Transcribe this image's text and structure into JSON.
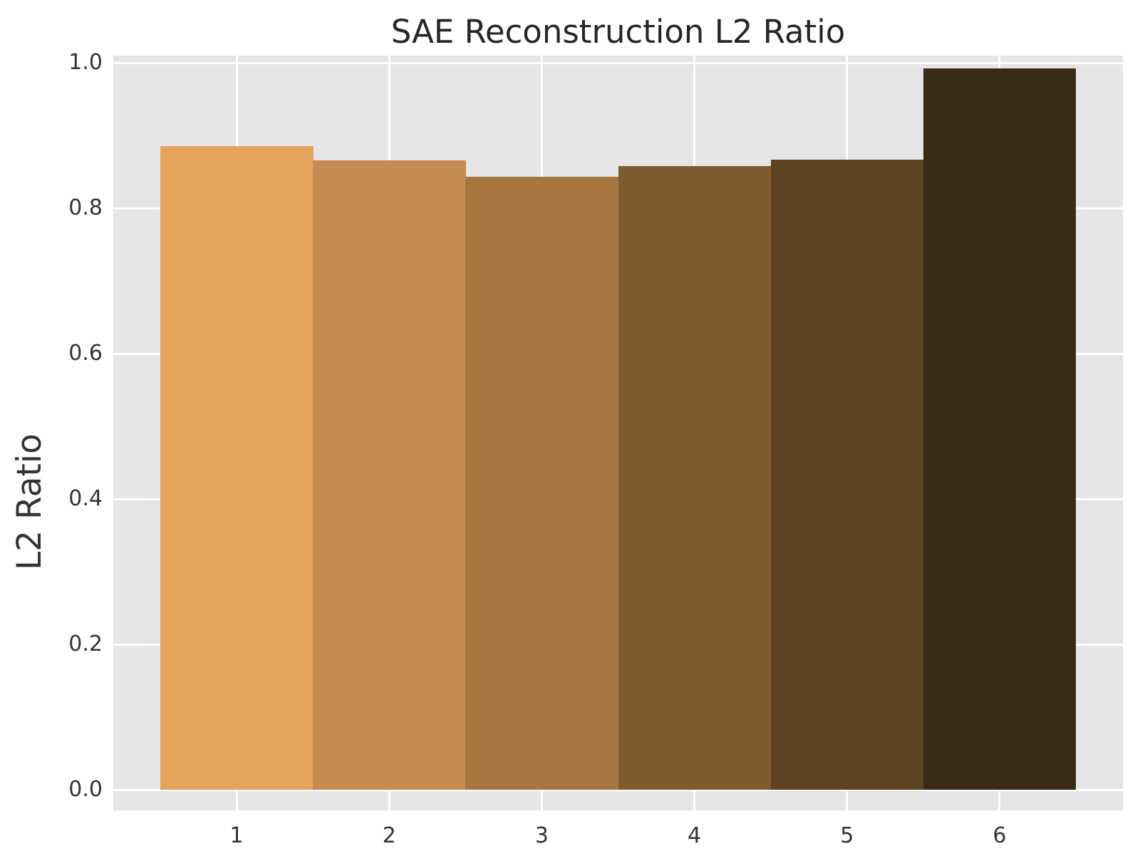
{
  "chart_data": {
    "type": "bar",
    "title": "SAE Reconstruction L2 Ratio",
    "ylabel": "L2 Ratio",
    "xlabel": "",
    "categories": [
      "1",
      "2",
      "3",
      "4",
      "5",
      "6"
    ],
    "values": [
      0.885,
      0.866,
      0.843,
      0.858,
      0.867,
      0.992
    ],
    "bar_colors": [
      "#E6A35C",
      "#C58C50",
      "#A67740",
      "#7F5B30",
      "#5C4423",
      "#392B18"
    ],
    "yticks": [
      "0.0",
      "0.2",
      "0.4",
      "0.6",
      "0.8",
      "1.0"
    ],
    "ytick_values": [
      0.0,
      0.2,
      0.4,
      0.6,
      0.8,
      1.0
    ],
    "ylim": [
      0,
      1
    ],
    "bar_width": 1.0,
    "grid": "on",
    "legend_position": "none",
    "style": {
      "plot_background": "#E5E5E5",
      "grid_color": "#FFFFFF",
      "figure_background": "#FFFFFF",
      "title_color": "#262626",
      "tick_color": "#333333"
    }
  }
}
